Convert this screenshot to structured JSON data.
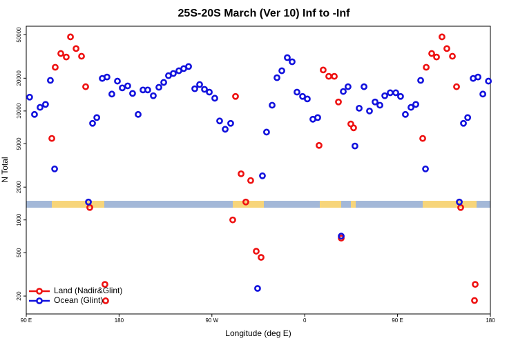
{
  "chart_data": {
    "type": "scatter",
    "title": "25S-20S March (Ver 10)   Inf to -Inf",
    "xlabel": "Longitude (deg E)",
    "ylabel": "N Total",
    "xlim": [
      90,
      540
    ],
    "xticks": [
      {
        "value": 90,
        "label": "90 E"
      },
      180,
      {
        "value": 270,
        "label": "90 W"
      },
      {
        "value": 360,
        "label": "0"
      },
      {
        "value": 450,
        "label": "90 E"
      },
      {
        "value": 540,
        "label": "180"
      }
    ],
    "ylim": [
      137,
      60000
    ],
    "yticks": [
      200,
      500,
      1000,
      2000,
      5000,
      10000,
      20000,
      50000
    ],
    "log_y": true,
    "legend": "lower left",
    "series": [
      {
        "name": "Land (Nadir&Glint)",
        "color": "#ee1111",
        "x": [
          114.8,
          118.1,
          123.5,
          128.8,
          132.9,
          138.3,
          143.6,
          147.6,
          151.6,
          166.3,
          167.0,
          290.2,
          292.9,
          298.3,
          302.9,
          307.6,
          313.0,
          317.7,
          373.9,
          377.9,
          383.3,
          388.7,
          392.7,
          395.4,
          404.7,
          407.4,
          474.4,
          477.8,
          483.1,
          487.8,
          493.1,
          497.8,
          503.2,
          507.2,
          511.2,
          525.3,
          524.6
        ],
        "values": [
          5600,
          25200,
          33700,
          31300,
          47900,
          37400,
          31800,
          16700,
          1300,
          256,
          181,
          1000,
          13600,
          2650,
          1460,
          2300,
          516,
          453,
          4830,
          23800,
          20800,
          20800,
          12100,
          680,
          7600,
          7000,
          5600,
          25200,
          33700,
          31300,
          47900,
          37400,
          31800,
          16700,
          1300,
          256,
          182
        ]
      },
      {
        "name": "Ocean (Glint)",
        "color": "#1111dd",
        "x": [
          93.3,
          98.0,
          103.4,
          108.7,
          113.4,
          117.5,
          150.3,
          154.3,
          158.4,
          163.7,
          168.3,
          173.0,
          178.4,
          183.1,
          188.4,
          193.1,
          198.5,
          203.2,
          207.8,
          213.2,
          218.6,
          223.3,
          227.9,
          232.6,
          238.0,
          242.7,
          247.4,
          253.4,
          258.1,
          262.8,
          267.5,
          272.8,
          277.5,
          282.9,
          288.2,
          314.3,
          319.0,
          323.0,
          328.4,
          333.1,
          337.8,
          343.1,
          347.8,
          352.5,
          357.9,
          362.5,
          367.9,
          372.6,
          395.4,
          397.4,
          402.0,
          408.7,
          412.8,
          417.5,
          422.8,
          428.2,
          432.9,
          437.6,
          442.9,
          448.3,
          452.9,
          457.6,
          463.0,
          467.7,
          472.4,
          477.1,
          509.9,
          513.9,
          518.0,
          523.3,
          528.0,
          532.7,
          538.1
        ],
        "values": [
          13400,
          9300,
          10800,
          11500,
          19100,
          2940,
          1460,
          7700,
          8700,
          19900,
          20500,
          14300,
          18800,
          16300,
          17000,
          14500,
          9300,
          15600,
          15600,
          13800,
          16500,
          18300,
          21100,
          22100,
          23400,
          24500,
          25600,
          16000,
          17500,
          15800,
          14900,
          13100,
          8100,
          6800,
          7700,
          235,
          2540,
          6400,
          11300,
          20200,
          23400,
          30900,
          28300,
          14900,
          13600,
          12900,
          8400,
          8700,
          710,
          15100,
          16700,
          4770,
          10600,
          16700,
          10000,
          12100,
          11300,
          13800,
          14700,
          14700,
          13600,
          9300,
          10800,
          11500,
          19100,
          2940,
          1460,
          7700,
          8700,
          19900,
          20500,
          14300,
          18800
        ]
      }
    ]
  }
}
